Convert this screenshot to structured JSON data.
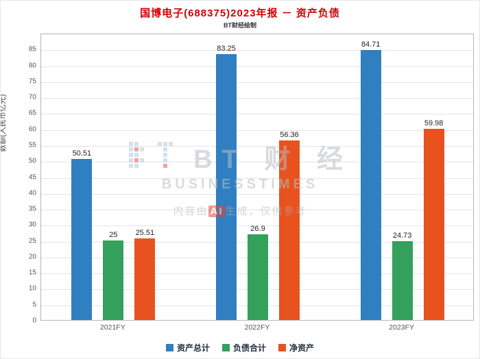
{
  "header": {
    "title": "国博电子(688375)2023年报 － 资产负债",
    "title_color": "#d10000",
    "subtitle": "BT财经绘制"
  },
  "chart_data": {
    "type": "bar",
    "title": "国博电子(688375)2023年报 － 资产负债",
    "subtitle": "BT财经绘制",
    "categories": [
      "2021FY",
      "2022FY",
      "2023FY"
    ],
    "series": [
      {
        "name": "资产总计",
        "color": "#2f7fc1",
        "values": [
          50.51,
          83.25,
          84.71
        ],
        "labels": [
          "50.51",
          "83.25",
          "84.71"
        ]
      },
      {
        "name": "负债合计",
        "color": "#33a05c",
        "values": [
          25,
          26.9,
          24.73
        ],
        "labels": [
          "25",
          "26.9",
          "24.73"
        ]
      },
      {
        "name": "净资产",
        "color": "#e8521f",
        "values": [
          25.51,
          56.36,
          59.98
        ],
        "labels": [
          "25.51",
          "56.36",
          "59.98"
        ]
      }
    ],
    "xlabel": "",
    "ylabel": "数额(人民币亿元)",
    "ylim": [
      0,
      90
    ],
    "yticks": [
      0,
      5,
      10,
      15,
      20,
      25,
      30,
      35,
      40,
      45,
      50,
      55,
      60,
      65,
      70,
      75,
      80,
      85
    ],
    "grid": true,
    "legend_position": "bottom"
  },
  "watermark": {
    "logo": "bt-pixel-logo",
    "brand_text": "BT 财 经",
    "brand_sub": "BUSINESSTIMES",
    "notice_prefix": "内容由",
    "notice_badge": "AI",
    "notice_suffix": "生成，仅供参考"
  }
}
